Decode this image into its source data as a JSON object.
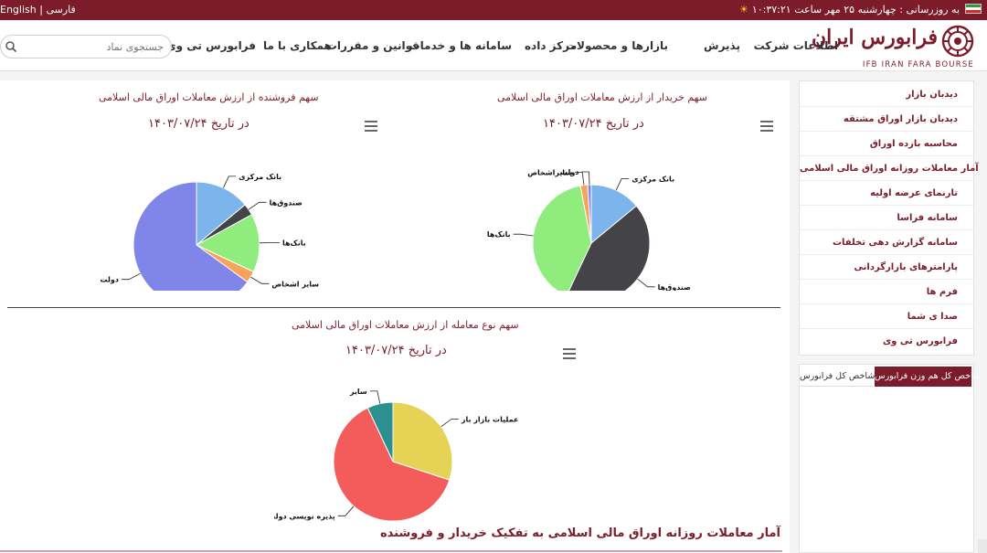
{
  "topbar": {
    "lang_en": "English",
    "lang_sep": "|",
    "lang_fa": "فارسی",
    "date_text": "به روزرسانی : چهارشنبه ۲۵ مهر ساعت ۱۰:۳۷:۲۱"
  },
  "logo": {
    "fa_name": "فرابورس ایران",
    "en_name": "IFB IRAN FARA BOURSE"
  },
  "nav": {
    "items": [
      "اطلاعات شرکت",
      "پذیرش",
      "بازارها و محصولات",
      "مرکز داده",
      "سامانه ها و خدمات",
      "قوانین و مقررات",
      "همکاری با ما",
      "فرابورس تی وی"
    ]
  },
  "search": {
    "placeholder": "جستجوی نماد"
  },
  "charts": [
    {
      "title": "سهم خریدار از ارزش معاملات اوراق مالی اسلامی",
      "subtitle": "در تاریخ ۱۴۰۳/۰۷/۲۴"
    },
    {
      "title": "سهم فروشنده از ارزش معاملات اوراق مالی اسلامی",
      "subtitle": "در تاریخ ۱۴۰۳/۰۷/۲۴"
    },
    {
      "title": "سهم نوع معامله از ارزش معاملات اوراق مالی اسلامی",
      "subtitle": "در تاریخ ۱۴۰۳/۰۷/۲۴"
    }
  ],
  "chart_data": [
    {
      "type": "pie",
      "title": "سهم خریدار از ارزش معاملات اوراق مالی اسلامی",
      "subtitle": "در تاریخ ۱۴۰۳/۰۷/۲۴",
      "series": [
        {
          "values": [
            {
              "label": "بانک مرکزی",
              "value": 14,
              "color": "#7cb5ec"
            },
            {
              "label": "صندوق‌ها",
              "value": 43,
              "color": "#434348"
            },
            {
              "label": "بانک‌ها",
              "value": 40,
              "color": "#90ed7d"
            },
            {
              "label": "سایراشخاص",
              "value": 2,
              "color": "#f7a35c"
            },
            {
              "label": "دولت",
              "value": 1,
              "color": "#8085e9"
            }
          ]
        }
      ]
    },
    {
      "type": "pie",
      "title": "سهم فروشنده از ارزش معاملات اوراق مالی اسلامی",
      "subtitle": "در تاریخ ۱۴۰۳/۰۷/۲۴",
      "series": [
        {
          "values": [
            {
              "label": "بانک مرکزی",
              "value": 14,
              "color": "#7cb5ec"
            },
            {
              "label": "صندوق‌ها",
              "value": 3,
              "color": "#434348"
            },
            {
              "label": "بانک‌ها",
              "value": 15,
              "color": "#90ed7d"
            },
            {
              "label": "سایر اشخاص",
              "value": 3,
              "color": "#f7a35c"
            },
            {
              "label": "دولت",
              "value": 65,
              "color": "#8085e9"
            }
          ]
        }
      ]
    },
    {
      "type": "pie",
      "title": "سهم نوع معامله از ارزش معاملات اوراق مالی اسلامی",
      "subtitle": "در تاریخ ۱۴۰۳/۰۷/۲۴",
      "series": [
        {
          "values": [
            {
              "label": "عملیات بازار باز",
              "value": 30,
              "color": "#e4d354"
            },
            {
              "label": "پذیره نویسی دولت",
              "value": 63,
              "color": "#f45b5b"
            },
            {
              "label": "سایر",
              "value": 7,
              "color": "#2b908f"
            }
          ]
        }
      ]
    }
  ],
  "section": {
    "title": "آمار معاملات روزانه اوراق مالی اسلامی به تفکیک خریدار و فروشنده"
  },
  "sidebar": {
    "items": [
      "دیدبان بازار",
      "دیدبان بازار اوراق مشتقه",
      "محاسبه بازده اوراق",
      "آمار معاملات روزانه اوراق مالی اسلامی",
      "تارنمای عرضه اولیه",
      "سامانه فراسا",
      "سامانه گزارش دهی تخلفات",
      "پارامترهای بازارگردانی",
      "فرم ها",
      "صدا ی شما",
      "فرابورس تی وی"
    ]
  },
  "index_tabs": {
    "active": "شاخص کل هم وزن فرابورس",
    "inactive": "شاخص کل فرابورس"
  }
}
